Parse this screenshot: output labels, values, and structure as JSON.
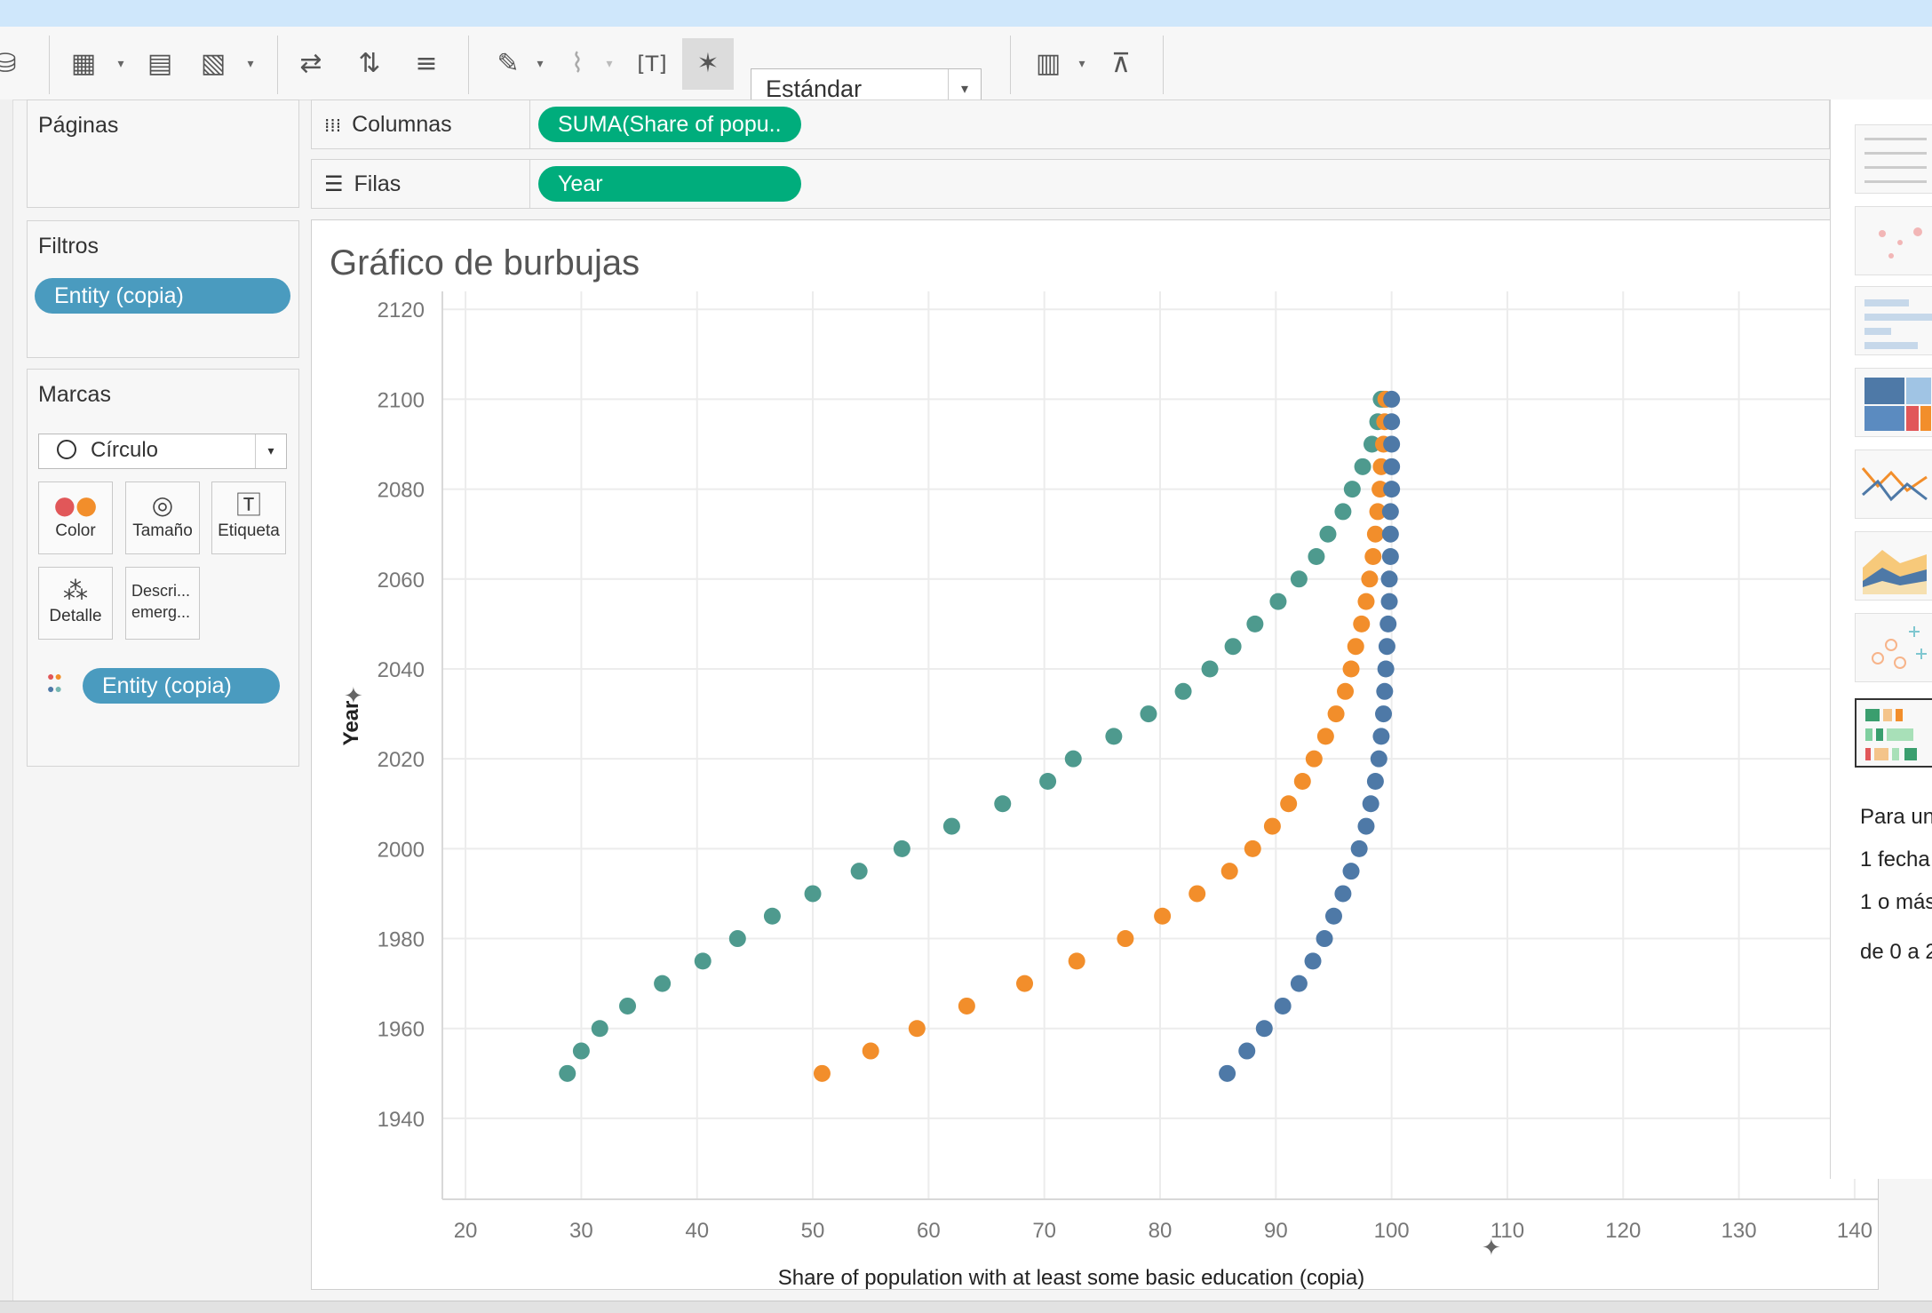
{
  "toolbar": {
    "standard_label": "Estándar"
  },
  "pages": {
    "title": "Páginas"
  },
  "filters": {
    "title": "Filtros",
    "pill": "Entity (copia)"
  },
  "marks": {
    "title": "Marcas",
    "mark_type": "Círculo",
    "buttons": {
      "color": "Color",
      "size": "Tamaño",
      "label": "Etiqueta",
      "detail": "Detalle",
      "tooltip": "Descri... emerg..."
    },
    "color_pill": "Entity (copia)"
  },
  "shelves": {
    "columns_label": "Columnas",
    "columns_pill": "SUMA(Share of popu..",
    "rows_label": "Filas",
    "rows_pill": "Year"
  },
  "viz": {
    "title": "Gráfico de burbujas"
  },
  "right_panel": {
    "lines": [
      "Para un",
      "1 fecha",
      "1 o más",
      "de 0 a 2"
    ]
  },
  "chart_data": {
    "type": "scatter",
    "title": "Gráfico de burbujas",
    "xlabel": "Share of population with at least some basic education (copia)",
    "ylabel": "Year",
    "xlim": [
      18,
      142
    ],
    "ylim": [
      1922,
      2124
    ],
    "xticks": [
      20,
      30,
      40,
      50,
      60,
      70,
      80,
      90,
      100,
      110,
      120,
      130,
      140
    ],
    "yticks": [
      1940,
      1960,
      1980,
      2000,
      2020,
      2040,
      2060,
      2080,
      2100,
      2120
    ],
    "grid": true,
    "series": [
      {
        "color": "#4e9a8e",
        "x": [
          28.8,
          30,
          31.6,
          34,
          37,
          40.5,
          43.5,
          46.5,
          50,
          54,
          57.7,
          62,
          66.4,
          70.3,
          72.5,
          76,
          79,
          82,
          84.3,
          86.3,
          88.2,
          90.2,
          92,
          93.5,
          94.5,
          95.8,
          96.6,
          97.5,
          98.3,
          98.8,
          99.1,
          99.3
        ],
        "y": [
          1950,
          1955,
          1960,
          1965,
          1970,
          1975,
          1980,
          1985,
          1990,
          1995,
          2000,
          2005,
          2010,
          2015,
          2020,
          2025,
          2030,
          2035,
          2040,
          2045,
          2050,
          2055,
          2060,
          2065,
          2070,
          2075,
          2080,
          2085,
          2090,
          2095,
          2100,
          2100
        ]
      },
      {
        "color": "#f28e2b",
        "x": [
          50.8,
          55,
          59,
          63.3,
          68.3,
          72.8,
          77,
          80.2,
          83.2,
          86,
          88,
          89.7,
          91.1,
          92.3,
          93.3,
          94.3,
          95.2,
          96,
          96.5,
          96.9,
          97.4,
          97.8,
          98.1,
          98.4,
          98.6,
          98.8,
          99.0,
          99.1,
          99.3,
          99.4,
          99.5
        ],
        "y": [
          1950,
          1955,
          1960,
          1965,
          1970,
          1975,
          1980,
          1985,
          1990,
          1995,
          2000,
          2005,
          2010,
          2015,
          2020,
          2025,
          2030,
          2035,
          2040,
          2045,
          2050,
          2055,
          2060,
          2065,
          2070,
          2075,
          2080,
          2085,
          2090,
          2095,
          2100
        ]
      },
      {
        "color": "#4e79a7",
        "x": [
          85.8,
          87.5,
          89,
          90.6,
          92,
          93.2,
          94.2,
          95,
          95.8,
          96.5,
          97.2,
          97.8,
          98.2,
          98.6,
          98.9,
          99.1,
          99.3,
          99.4,
          99.5,
          99.6,
          99.7,
          99.8,
          99.8,
          99.9,
          99.9,
          99.9,
          100,
          100,
          100,
          100,
          100
        ],
        "y": [
          1950,
          1955,
          1960,
          1965,
          1970,
          1975,
          1980,
          1985,
          1990,
          1995,
          2000,
          2005,
          2010,
          2015,
          2020,
          2025,
          2030,
          2035,
          2040,
          2045,
          2050,
          2055,
          2060,
          2065,
          2070,
          2075,
          2080,
          2085,
          2090,
          2095,
          2100
        ]
      }
    ]
  }
}
